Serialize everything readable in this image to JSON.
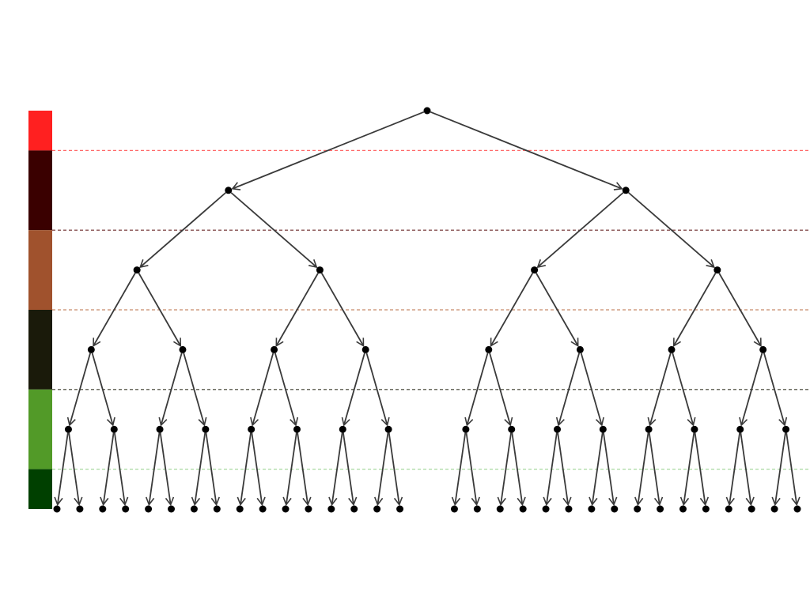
{
  "levels": [
    {
      "depth": 0,
      "color": "#ff2020",
      "line_color": "#ff6b6b"
    },
    {
      "depth": 1,
      "color": "#3a0000",
      "line_color": "#6b2a2a"
    },
    {
      "depth": 2,
      "color": "#a0522d",
      "line_color": "#c88a6a"
    },
    {
      "depth": 3,
      "color": "#1a1a0a",
      "line_color": "#3a3a2a"
    },
    {
      "depth": 4,
      "color": "#529a28",
      "line_color": "#a8d8a0"
    },
    {
      "depth": 5,
      "color": "#004000",
      "line_color": null
    }
  ],
  "tree": {
    "node_color": "#000000",
    "edge_color": "#3a3a3a",
    "children": [
      {
        "children": [
          {
            "children": [
              {
                "children": [
                  {
                    "children": [
                      {},
                      {}
                    ]
                  },
                  {
                    "children": [
                      {},
                      {}
                    ]
                  }
                ]
              },
              {
                "children": [
                  {
                    "children": [
                      {},
                      {}
                    ]
                  },
                  {
                    "children": [
                      {},
                      {}
                    ]
                  }
                ]
              }
            ]
          },
          {
            "children": [
              {
                "children": [
                  {
                    "children": [
                      {},
                      {}
                    ]
                  },
                  {
                    "children": [
                      {},
                      {}
                    ]
                  }
                ]
              },
              {
                "children": [
                  {
                    "children": [
                      {},
                      {}
                    ]
                  },
                  {
                    "children": [
                      {},
                      {}
                    ]
                  }
                ]
              }
            ]
          }
        ]
      },
      {
        "children": [
          {
            "children": [
              {
                "children": [
                  {
                    "children": [
                      {},
                      {}
                    ]
                  },
                  {
                    "children": [
                      {},
                      {}
                    ]
                  }
                ]
              },
              {
                "children": [
                  {
                    "children": [
                      {},
                      {}
                    ]
                  },
                  {
                    "children": [
                      {},
                      {}
                    ]
                  }
                ]
              }
            ]
          },
          {
            "children": [
              {
                "children": [
                  {
                    "children": [
                      {},
                      {}
                    ]
                  },
                  {
                    "children": [
                      {},
                      {}
                    ]
                  }
                ]
              },
              {
                "children": [
                  {
                    "children": [
                      {},
                      {}
                    ]
                  },
                  {
                    "children": [
                      {},
                      {}
                    ]
                  }
                ]
              }
            ]
          }
        ]
      }
    ]
  }
}
